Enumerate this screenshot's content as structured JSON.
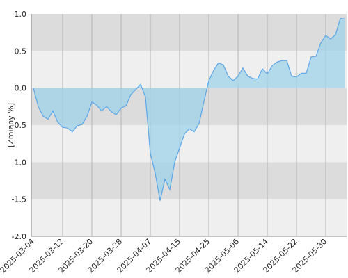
{
  "chart_data": {
    "type": "area",
    "ylabel": "[Zmiany %]",
    "categories": [
      "2025-03-04",
      null,
      null,
      null,
      null,
      null,
      "2025-03-12",
      null,
      null,
      null,
      null,
      null,
      "2025-03-20",
      null,
      null,
      null,
      null,
      null,
      "2025-03-28",
      null,
      null,
      null,
      null,
      null,
      "2025-04-07",
      null,
      null,
      null,
      null,
      null,
      "2025-04-15",
      null,
      null,
      null,
      null,
      null,
      "2025-04-25",
      null,
      null,
      null,
      null,
      null,
      "2025-05-06",
      null,
      null,
      null,
      null,
      null,
      "2025-05-14",
      null,
      null,
      null,
      null,
      null,
      "2025-05-22",
      null,
      null,
      null,
      null,
      null,
      "2025-05-30",
      null,
      null,
      null,
      null
    ],
    "values": [
      0.0,
      -0.25,
      -0.38,
      -0.42,
      -0.31,
      -0.46,
      -0.53,
      -0.54,
      -0.59,
      -0.51,
      -0.49,
      -0.38,
      -0.19,
      -0.23,
      -0.31,
      -0.25,
      -0.32,
      -0.36,
      -0.27,
      -0.24,
      -0.09,
      -0.02,
      0.05,
      -0.12,
      -0.88,
      -1.15,
      -1.52,
      -1.23,
      -1.37,
      -1.0,
      -0.81,
      -0.62,
      -0.55,
      -0.59,
      -0.48,
      -0.18,
      0.1,
      0.24,
      0.34,
      0.31,
      0.16,
      0.1,
      0.16,
      0.27,
      0.16,
      0.13,
      0.12,
      0.26,
      0.19,
      0.3,
      0.35,
      0.37,
      0.37,
      0.16,
      0.15,
      0.2,
      0.2,
      0.42,
      0.43,
      0.61,
      0.71,
      0.66,
      0.72,
      0.94,
      0.93
    ],
    "color": "#5aa6e8",
    "fill": "#9fd3ea",
    "ylim": [
      -2.0,
      1.0
    ],
    "yticks": [
      {
        "value": 1.0,
        "label": "1.0"
      },
      0.5,
      {
        "value": 0.0,
        "label": "0.0"
      },
      -0.5,
      {
        "value": -1.0,
        "label": "-1.0"
      },
      -1.5,
      {
        "value": -2.0,
        "label": "-2.0"
      }
    ],
    "grid": true
  }
}
